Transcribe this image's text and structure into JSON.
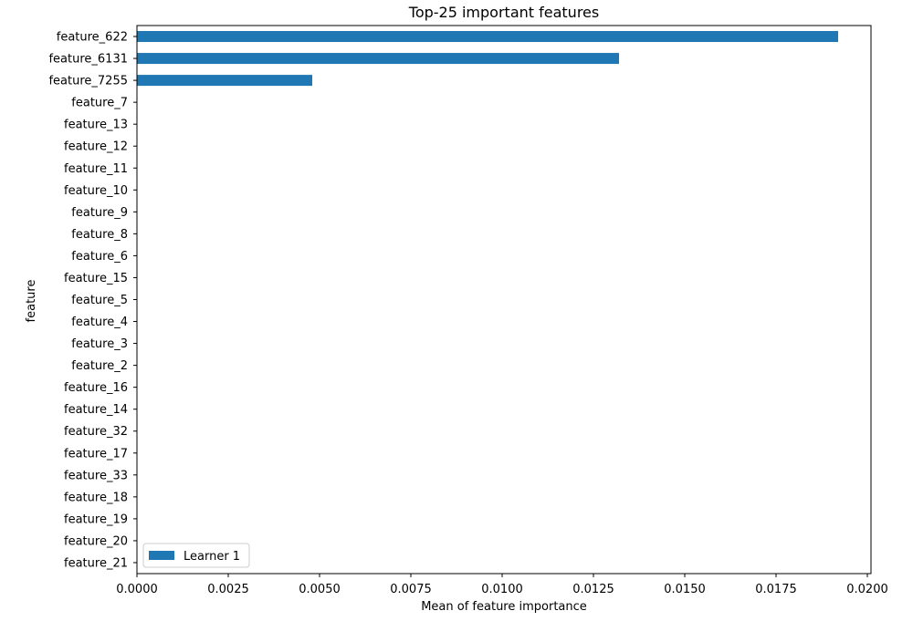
{
  "chart_data": {
    "type": "bar",
    "orientation": "horizontal",
    "title": "Top-25 important features",
    "xlabel": "Mean of feature importance",
    "ylabel": "feature",
    "xlim": [
      0,
      0.0201
    ],
    "x_ticks": [
      "0.0000",
      "0.0025",
      "0.0050",
      "0.0075",
      "0.0100",
      "0.0125",
      "0.0150",
      "0.0175",
      "0.0200"
    ],
    "categories": [
      "feature_622",
      "feature_6131",
      "feature_7255",
      "feature_7",
      "feature_13",
      "feature_12",
      "feature_11",
      "feature_10",
      "feature_9",
      "feature_8",
      "feature_6",
      "feature_15",
      "feature_5",
      "feature_4",
      "feature_3",
      "feature_2",
      "feature_16",
      "feature_14",
      "feature_32",
      "feature_17",
      "feature_33",
      "feature_18",
      "feature_19",
      "feature_20",
      "feature_21"
    ],
    "series": [
      {
        "name": "Learner 1",
        "color": "#1f77b4",
        "values": [
          0.0192,
          0.0132,
          0.0048,
          0,
          0,
          0,
          0,
          0,
          0,
          0,
          0,
          0,
          0,
          0,
          0,
          0,
          0,
          0,
          0,
          0,
          0,
          0,
          0,
          0,
          0
        ]
      }
    ],
    "grid": false,
    "legend_position": "lower-left"
  }
}
